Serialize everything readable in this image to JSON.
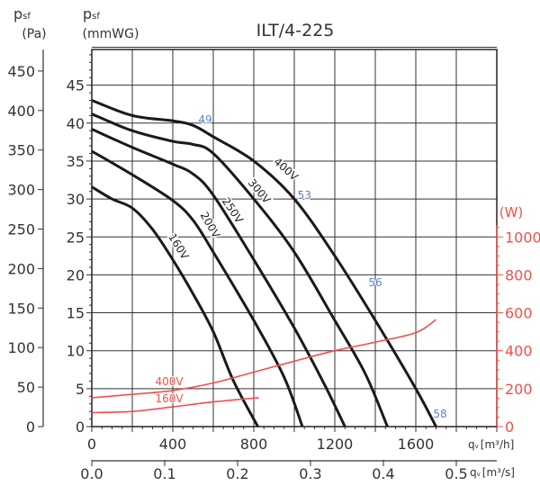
{
  "chart_data": {
    "type": "line",
    "title": "ILT/4-225",
    "y_left_outer": {
      "label_symbol": "p",
      "label_sub": "sf",
      "unit": "(Pa)",
      "range": [
        0,
        450
      ],
      "ticks": [
        0,
        50,
        100,
        150,
        200,
        250,
        300,
        350,
        400,
        450
      ]
    },
    "y_left": {
      "label_symbol": "p",
      "label_sub": "sf",
      "unit": "(mmWG)",
      "range": [
        0,
        50
      ],
      "ticks": [
        0,
        5,
        10,
        15,
        20,
        25,
        30,
        35,
        40,
        45
      ]
    },
    "y_right": {
      "unit": "(W)",
      "range": [
        0,
        1000
      ],
      "ticks": [
        0,
        200,
        400,
        600,
        800,
        1000
      ],
      "color": "#f0504a"
    },
    "x": {
      "label_symbol": "q",
      "label_sub": "v",
      "unit": "[m³/h]",
      "range": [
        0,
        2000
      ],
      "ticks": [
        0,
        400,
        800,
        1200,
        1600
      ]
    },
    "x_secondary": {
      "label_symbol": "q",
      "label_sub": "v",
      "unit": "[m³/s]",
      "ticks": [
        "0.0",
        "0.1",
        "0.2",
        "0.3",
        "0.4",
        "0.5"
      ],
      "tick_values": [
        0,
        0.1,
        0.2,
        0.3,
        0.4,
        0.5
      ]
    },
    "grid": true,
    "pressure_series": [
      {
        "name": "400V",
        "color": "#1a1a1a",
        "points": [
          [
            0,
            43
          ],
          [
            200,
            41
          ],
          [
            400,
            40.3
          ],
          [
            500,
            39.7
          ],
          [
            600,
            38.2
          ],
          [
            800,
            35
          ],
          [
            1000,
            30
          ],
          [
            1200,
            22.5
          ],
          [
            1400,
            14
          ],
          [
            1600,
            5
          ],
          [
            1700,
            0
          ]
        ]
      },
      {
        "name": "300V",
        "color": "#1a1a1a",
        "points": [
          [
            0,
            41.2
          ],
          [
            200,
            39
          ],
          [
            400,
            37.6
          ],
          [
            500,
            37.2
          ],
          [
            600,
            36
          ],
          [
            800,
            30
          ],
          [
            1000,
            23
          ],
          [
            1200,
            14
          ],
          [
            1350,
            7
          ],
          [
            1460,
            0
          ]
        ]
      },
      {
        "name": "250V",
        "color": "#1a1a1a",
        "points": [
          [
            0,
            39.2
          ],
          [
            200,
            36.8
          ],
          [
            400,
            34.6
          ],
          [
            500,
            33.3
          ],
          [
            600,
            30.5
          ],
          [
            800,
            22
          ],
          [
            1000,
            13
          ],
          [
            1150,
            5.5
          ],
          [
            1250,
            0
          ]
        ]
      },
      {
        "name": "200V",
        "color": "#1a1a1a",
        "points": [
          [
            0,
            36.3
          ],
          [
            200,
            33.2
          ],
          [
            400,
            29.8
          ],
          [
            500,
            27.2
          ],
          [
            600,
            23
          ],
          [
            800,
            14
          ],
          [
            950,
            6.5
          ],
          [
            1040,
            0
          ]
        ]
      },
      {
        "name": "160V",
        "color": "#1a1a1a",
        "points": [
          [
            0,
            31.6
          ],
          [
            100,
            30
          ],
          [
            200,
            28.8
          ],
          [
            300,
            26
          ],
          [
            400,
            22
          ],
          [
            500,
            17.5
          ],
          [
            600,
            12.5
          ],
          [
            700,
            6
          ],
          [
            820,
            0
          ]
        ]
      }
    ],
    "power_series": [
      {
        "name": "400V",
        "color": "#f0504a",
        "points": [
          [
            0,
            152
          ],
          [
            200,
            170
          ],
          [
            400,
            190
          ],
          [
            600,
            230
          ],
          [
            800,
            287
          ],
          [
            1000,
            345
          ],
          [
            1200,
            400
          ],
          [
            1400,
            445
          ],
          [
            1600,
            495
          ],
          [
            1700,
            564
          ]
        ]
      },
      {
        "name": "160V",
        "color": "#f0504a",
        "points": [
          [
            0,
            74
          ],
          [
            200,
            80
          ],
          [
            400,
            104
          ],
          [
            600,
            130
          ],
          [
            800,
            150
          ],
          [
            820,
            152
          ]
        ]
      }
    ],
    "annotations": [
      {
        "text": "49",
        "x": 560,
        "y": 40,
        "color": "#5b7fc4"
      },
      {
        "text": "53",
        "x": 1050,
        "y": 30,
        "color": "#5b7fc4"
      },
      {
        "text": "56",
        "x": 1400,
        "y": 18.5,
        "color": "#5b7fc4"
      },
      {
        "text": "58",
        "x": 1720,
        "y": 1.2,
        "color": "#5b7fc4"
      }
    ]
  }
}
